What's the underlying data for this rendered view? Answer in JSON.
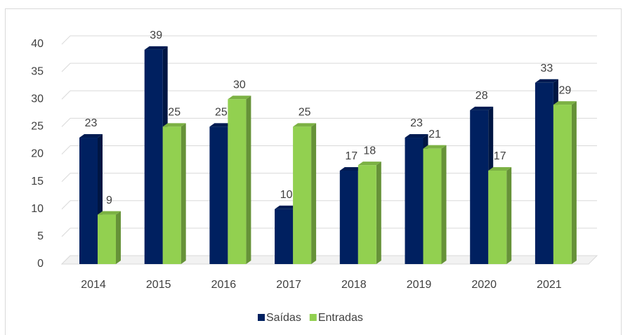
{
  "chart_data": {
    "type": "bar",
    "categories": [
      "2014",
      "2015",
      "2016",
      "2017",
      "2018",
      "2019",
      "2020",
      "2021"
    ],
    "series": [
      {
        "name": "Saídas",
        "color": "#002060",
        "values": [
          23,
          39,
          25,
          10,
          17,
          23,
          28,
          33
        ]
      },
      {
        "name": "Entradas",
        "color": "#92d050",
        "values": [
          9,
          25,
          30,
          25,
          18,
          21,
          17,
          29
        ]
      }
    ],
    "ylim": [
      0,
      40
    ],
    "yticks": [
      0,
      5,
      10,
      15,
      20,
      25,
      30,
      35,
      40
    ],
    "grid": true,
    "legend": "bottom"
  }
}
